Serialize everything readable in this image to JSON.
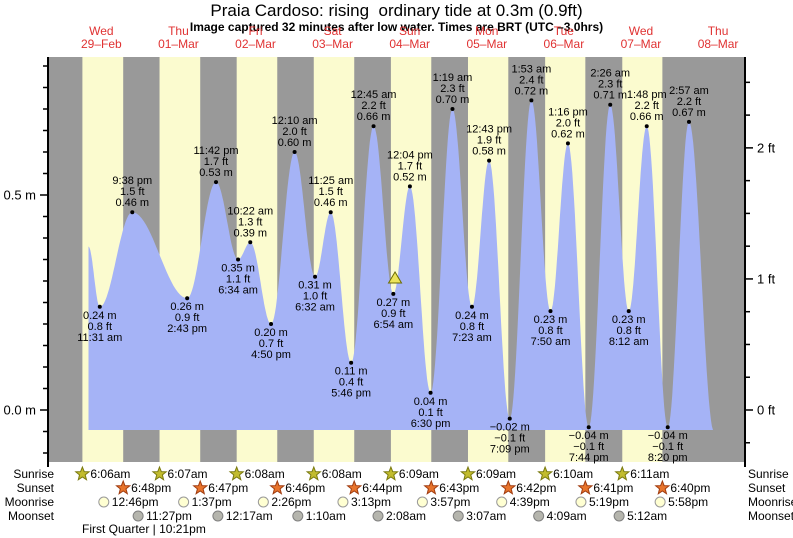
{
  "title": "Praia Cardoso: rising  ordinary tide at 0.3m (0.9ft)",
  "subtitle": "Image captured 32 minutes after low water. Times are BRT (UTC –3.0hrs)",
  "colors": {
    "day_band": "#fbfbcf",
    "night_band": "#999999",
    "tide_fill": "#a5b3f6",
    "header_red": "#e03232",
    "axis": "#000000",
    "sunrise_star": "#c2bc2e",
    "sunrise_star_border": "#7a7a10",
    "sunset_star": "#e8742c",
    "sunset_star_border": "#a03c10",
    "moonrise_circle": "#ffffd2",
    "moonrise_circle_border": "#999999",
    "moonset_circle": "#b5b5ad",
    "moonset_circle_border": "#808080",
    "marker_yellow": "#ece45a",
    "marker_border": "#6b6b00"
  },
  "days": [
    {
      "name": "Wed",
      "date": "29–Feb"
    },
    {
      "name": "Thu",
      "date": "01–Mar"
    },
    {
      "name": "Fri",
      "date": "02–Mar"
    },
    {
      "name": "Sat",
      "date": "03–Mar"
    },
    {
      "name": "Sun",
      "date": "04–Mar"
    },
    {
      "name": "Mon",
      "date": "05–Mar"
    },
    {
      "name": "Tue",
      "date": "06–Mar"
    },
    {
      "name": "Wed",
      "date": "07–Mar"
    },
    {
      "name": "Thu",
      "date": "08–Mar"
    }
  ],
  "axis_labels": {
    "left": [
      {
        "m": 0.0,
        "label": "0.0 m"
      },
      {
        "m": 0.5,
        "label": "0.5 m"
      }
    ],
    "right": [
      {
        "ft": 0,
        "label": "0 ft"
      },
      {
        "ft": 1,
        "label": "1 ft"
      },
      {
        "ft": 2,
        "label": "2 ft"
      }
    ]
  },
  "chart_data": {
    "type": "area",
    "y_unit_left": "m",
    "y_unit_right": "ft",
    "ylim_m": [
      -0.12,
      0.81
    ],
    "events": [
      {
        "d": 0,
        "time": "11:31 am",
        "m": 0.24,
        "type": "low",
        "labels": [
          "0.24 m",
          "0.8 ft",
          "11:31 am"
        ]
      },
      {
        "d": 0,
        "time": "9:38 pm",
        "m": 0.46,
        "type": "high",
        "labels": [
          "9:38 pm",
          "1.5 ft",
          "0.46 m"
        ]
      },
      {
        "d": 1,
        "time": "2:43 pm",
        "m": 0.26,
        "type": "low",
        "labels": [
          "0.26 m",
          "0.9 ft",
          "2:43 pm"
        ]
      },
      {
        "d": 1,
        "time": "11:42 pm",
        "m": 0.53,
        "type": "high",
        "labels": [
          "11:42 pm",
          "1.7 ft",
          "0.53 m"
        ]
      },
      {
        "d": 2,
        "time": "6:34 am",
        "m": 0.35,
        "type": "low",
        "labels": [
          "0.35 m",
          "1.1 ft",
          "6:34 am"
        ]
      },
      {
        "d": 2,
        "time": "10:22 am",
        "m": 0.39,
        "type": "high",
        "labels": [
          "10:22 am",
          "1.3 ft",
          "0.39 m"
        ]
      },
      {
        "d": 2,
        "time": "4:50 pm",
        "m": 0.2,
        "type": "low",
        "labels": [
          "0.20 m",
          "0.7 ft",
          "4:50 pm"
        ]
      },
      {
        "d": 3,
        "time": "12:10 am",
        "m": 0.6,
        "type": "high",
        "labels": [
          "12:10 am",
          "2.0 ft",
          "0.60 m"
        ]
      },
      {
        "d": 3,
        "time": "6:32 am",
        "m": 0.31,
        "type": "low",
        "labels": [
          "0.31 m",
          "1.0 ft",
          "6:32 am"
        ]
      },
      {
        "d": 3,
        "time": "11:25 am",
        "m": 0.46,
        "type": "high",
        "labels": [
          "11:25 am",
          "1.5 ft",
          "0.46 m"
        ]
      },
      {
        "d": 3,
        "time": "5:46 pm",
        "m": 0.11,
        "type": "low",
        "labels": [
          "0.11 m",
          "0.4 ft",
          "5:46 pm"
        ]
      },
      {
        "d": 4,
        "time": "12:45 am",
        "m": 0.66,
        "type": "high",
        "labels": [
          "12:45 am",
          "2.2 ft",
          "0.66 m"
        ]
      },
      {
        "d": 4,
        "time": "6:54 am",
        "m": 0.27,
        "type": "low",
        "labels": [
          "0.27 m",
          "0.9 ft",
          "6:54 am"
        ]
      },
      {
        "d": 4,
        "time": "12:04 pm",
        "m": 0.52,
        "type": "high",
        "labels": [
          "12:04 pm",
          "1.7 ft",
          "0.52 m"
        ]
      },
      {
        "d": 4,
        "time": "6:30 pm",
        "m": 0.04,
        "type": "low",
        "labels": [
          "0.04 m",
          "0.1 ft",
          "6:30 pm"
        ]
      },
      {
        "d": 5,
        "time": "1:19 am",
        "m": 0.7,
        "type": "high",
        "labels": [
          "1:19 am",
          "2.3 ft",
          "0.70 m"
        ]
      },
      {
        "d": 5,
        "time": "7:23 am",
        "m": 0.24,
        "type": "low",
        "labels": [
          "0.24 m",
          "0.8 ft",
          "7:23 am"
        ]
      },
      {
        "d": 5,
        "time": "12:43 pm",
        "m": 0.58,
        "type": "high",
        "labels": [
          "12:43 pm",
          "1.9 ft",
          "0.58 m"
        ]
      },
      {
        "d": 5,
        "time": "7:09 pm",
        "m": -0.02,
        "type": "low",
        "labels": [
          "−0.02 m",
          "−0.1 ft",
          "7:09 pm"
        ]
      },
      {
        "d": 6,
        "time": "1:53 am",
        "m": 0.72,
        "type": "high",
        "labels": [
          "1:53 am",
          "2.4 ft",
          "0.72 m"
        ]
      },
      {
        "d": 6,
        "time": "7:50 am",
        "m": 0.23,
        "type": "low",
        "labels": [
          "0.23 m",
          "0.8 ft",
          "7:50 am"
        ]
      },
      {
        "d": 6,
        "time": "1:16 pm",
        "m": 0.62,
        "type": "high",
        "labels": [
          "1:16 pm",
          "2.0 ft",
          "0.62 m"
        ]
      },
      {
        "d": 6,
        "time": "7:44 pm",
        "m": -0.04,
        "type": "low",
        "labels": [
          "−0.04 m",
          "−0.1 ft",
          "7:44 pm"
        ]
      },
      {
        "d": 7,
        "time": "2:26 am",
        "m": 0.71,
        "type": "high",
        "labels": [
          "2:26 am",
          "2.3 ft",
          "0.71 m"
        ]
      },
      {
        "d": 7,
        "time": "8:12 am",
        "m": 0.23,
        "type": "low",
        "labels": [
          "0.23 m",
          "0.8 ft",
          "8:12 am"
        ]
      },
      {
        "d": 7,
        "time": "1:48 pm",
        "m": 0.66,
        "type": "high",
        "labels": [
          "1:48 pm",
          "2.2 ft",
          "0.66 m"
        ]
      },
      {
        "d": 7,
        "time": "8:20 pm",
        "m": -0.04,
        "type": "low",
        "labels": [
          "−0.04 m",
          "−0.1 ft",
          "8:20 pm"
        ]
      },
      {
        "d": 8,
        "time": "2:57 am",
        "m": 0.67,
        "type": "high",
        "labels": [
          "2:57 am",
          "2.2 ft",
          "0.67 m"
        ]
      }
    ],
    "curve_pads": {
      "start": {
        "d": 0,
        "time": "8:00 am",
        "m": 0.38
      },
      "end": {
        "d": 8,
        "time": "10:45 am",
        "m": -0.05
      }
    },
    "current_marker": {
      "d": 4,
      "time": "7:26 am",
      "m": 0.3
    }
  },
  "sun_moon": {
    "sunrise": [
      {
        "d": 0,
        "time": "6:06am"
      },
      {
        "d": 1,
        "time": "6:07am"
      },
      {
        "d": 2,
        "time": "6:08am"
      },
      {
        "d": 3,
        "time": "6:08am"
      },
      {
        "d": 4,
        "time": "6:09am"
      },
      {
        "d": 5,
        "time": "6:09am"
      },
      {
        "d": 6,
        "time": "6:10am"
      },
      {
        "d": 7,
        "time": "6:11am"
      }
    ],
    "sunset": [
      {
        "d": 0,
        "time": "6:48pm"
      },
      {
        "d": 1,
        "time": "6:47pm"
      },
      {
        "d": 2,
        "time": "6:46pm"
      },
      {
        "d": 3,
        "time": "6:44pm"
      },
      {
        "d": 4,
        "time": "6:43pm"
      },
      {
        "d": 5,
        "time": "6:42pm"
      },
      {
        "d": 6,
        "time": "6:41pm"
      },
      {
        "d": 7,
        "time": "6:40pm"
      }
    ],
    "moonrise": [
      {
        "d": 0,
        "time": "12:46pm"
      },
      {
        "d": 1,
        "time": "1:37pm"
      },
      {
        "d": 2,
        "time": "2:26pm"
      },
      {
        "d": 3,
        "time": "3:13pm"
      },
      {
        "d": 4,
        "time": "3:57pm"
      },
      {
        "d": 5,
        "time": "4:39pm"
      },
      {
        "d": 6,
        "time": "5:19pm"
      },
      {
        "d": 7,
        "time": "5:58pm"
      }
    ],
    "moonset": [
      {
        "d": 0,
        "time": "11:27pm"
      },
      {
        "d": 2,
        "time": "12:17am"
      },
      {
        "d": 3,
        "time": "1:10am"
      },
      {
        "d": 4,
        "time": "2:08am"
      },
      {
        "d": 5,
        "time": "3:07am"
      },
      {
        "d": 6,
        "time": "4:09am"
      },
      {
        "d": 7,
        "time": "5:12am"
      }
    ]
  },
  "row_labels": {
    "sunrise": "Sunrise",
    "sunset": "Sunset",
    "moonrise": "Moonrise",
    "moonset": "Moonset"
  },
  "moon_phase": "First Quarter | 10:21pm"
}
